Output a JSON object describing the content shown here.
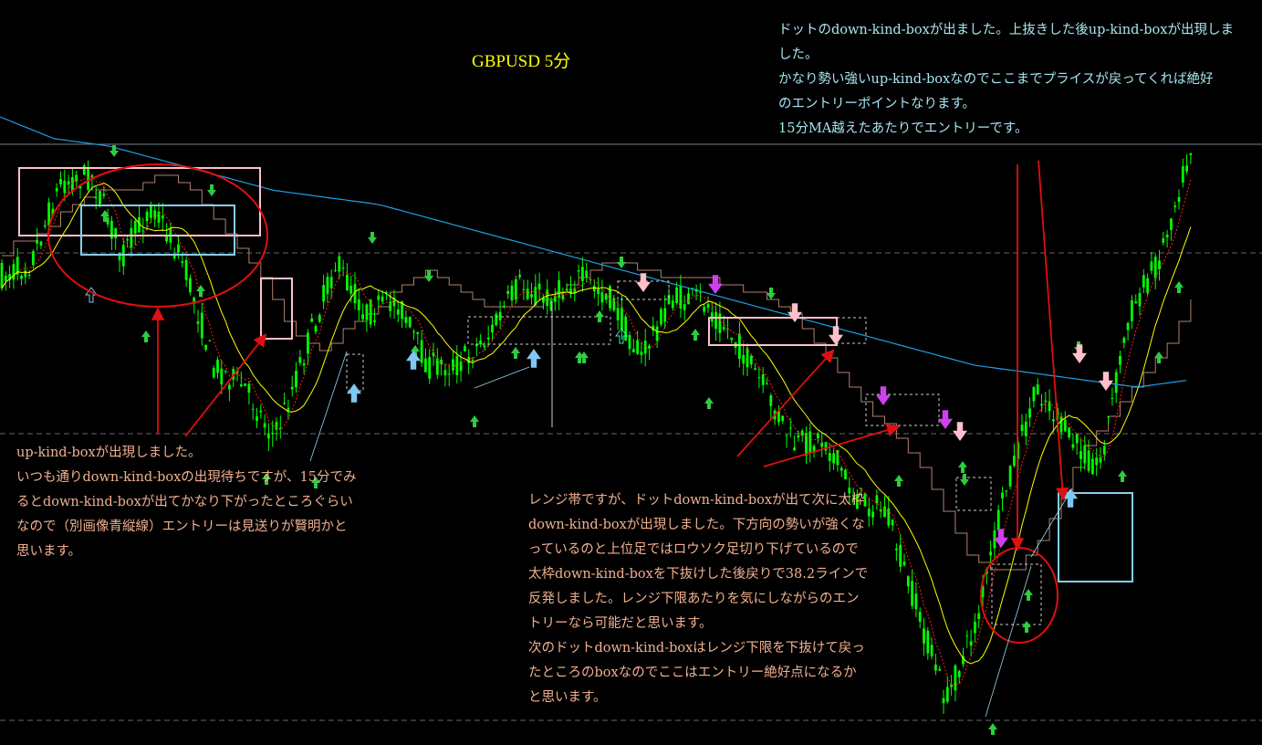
{
  "header": {
    "title": "GBPUSD 5分"
  },
  "notes": {
    "top_right": [
      "ドットのdown-kind-boxが出ました。上抜きした後up-kind-boxが出現しま",
      "した。",
      "かなり勢い強いup-kind-boxなのでここまでプライスが戻ってくれば絶好",
      "のエントリーポイントなります。",
      "15分MA越えたあたりでエントリーです。"
    ],
    "bottom_left": [
      "up-kind-boxが出現しました。",
      "いつも通りdown-kind-boxの出現待ちですが、15分でみ",
      "るとdown-kind-boxが出てかなり下がったところぐらい",
      "なので（別画像青縦線）エントリーは見送りが賢明かと",
      "思います。"
    ],
    "bottom_center": [
      "レンジ帯ですが、ドットdown-kind-boxが出て次に太枠",
      "down-kind-boxが出現しました。下方向の勢いが強くな",
      "っているのと上位足ではロウソク足切り下げているので",
      "太枠down-kind-boxを下抜けした後戻りで38.2ラインで",
      "反発しました。レンジ下限あたりを気にしながらのエン",
      "トリーなら可能だと思います。",
      "次のドットdown-kind-boxはレンジ下限を下抜けて戻っ",
      "たところのboxなのでここはエントリー絶好点になるか",
      "と思います。"
    ]
  },
  "colors": {
    "background": "#000000",
    "candle": "#00ff00",
    "fast_ma": "#ffff00",
    "slow_ma": "#1ea0e6",
    "step_line": "#b08070",
    "dotted_ma": "#ff2020",
    "annotation_arrow": "#e01010",
    "up_box": "#ffc0cb",
    "cyan_box": "#87ceeb",
    "signal_up": "#2ecc40",
    "signal_down": "#ffc0cb",
    "note_cyan": "#a8e4f0",
    "note_salmon": "#f0b090",
    "title": "#ffff00"
  },
  "chart_data": {
    "type": "candlestick",
    "title": "GBPUSD 5分",
    "xlabel": "",
    "ylabel": "",
    "grid": false,
    "price_path": [
      62,
      64,
      75,
      76,
      65,
      72,
      64,
      50,
      47,
      40,
      52,
      64,
      57,
      59,
      50,
      50,
      54,
      61,
      59,
      62,
      59,
      51,
      59,
      59,
      54,
      47,
      39,
      40,
      32,
      30,
      17,
      4,
      15,
      34,
      47,
      40,
      36,
      57,
      65,
      80
    ],
    "slow_ma": [
      79,
      77,
      77,
      76,
      75,
      74,
      73,
      72,
      70,
      68,
      66,
      64,
      62,
      60,
      58,
      56,
      54,
      52,
      50,
      49,
      48,
      47,
      48
    ],
    "horizontal_levels": [
      "top",
      "upper",
      "middle",
      "bottom"
    ]
  }
}
